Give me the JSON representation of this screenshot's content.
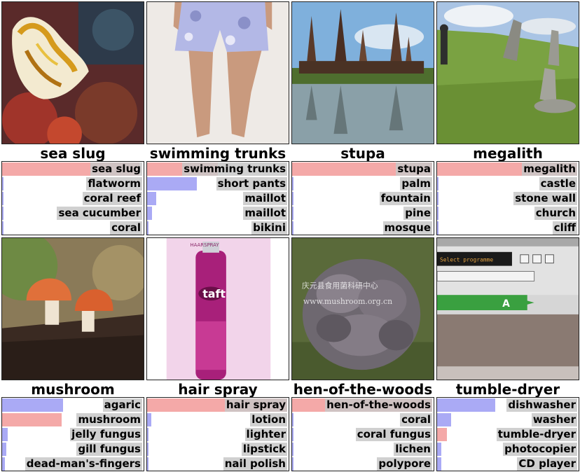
{
  "colors": {
    "truth_bar": "#f4a9a8",
    "prediction_bar": "#aaaaf5",
    "label_bg": "#c8c8c8"
  },
  "cells": [
    {
      "title": "sea slug",
      "photo_icon": "sea-slug-photo",
      "predictions": [
        {
          "label": "sea slug",
          "score": 0.97,
          "truth": true
        },
        {
          "label": "flatworm",
          "score": 0.01,
          "truth": false
        },
        {
          "label": "coral reef",
          "score": 0.01,
          "truth": false
        },
        {
          "label": "sea cucumber",
          "score": 0.01,
          "truth": false
        },
        {
          "label": "coral",
          "score": 0.005,
          "truth": false
        }
      ]
    },
    {
      "title": "swimming trunks",
      "photo_icon": "swimming-trunks-photo",
      "predictions": [
        {
          "label": "swimming trunks",
          "score": 0.5,
          "truth": true
        },
        {
          "label": "short pants",
          "score": 0.35,
          "truth": false
        },
        {
          "label": "maillot",
          "score": 0.065,
          "truth": false
        },
        {
          "label": "maillot",
          "score": 0.035,
          "truth": false
        },
        {
          "label": "bikini",
          "score": 0.01,
          "truth": false
        }
      ]
    },
    {
      "title": "stupa",
      "photo_icon": "stupa-photo",
      "predictions": [
        {
          "label": "stupa",
          "score": 0.99,
          "truth": true
        },
        {
          "label": "palm",
          "score": 0.003,
          "truth": false
        },
        {
          "label": "fountain",
          "score": 0.003,
          "truth": false
        },
        {
          "label": "pine",
          "score": 0.002,
          "truth": false
        },
        {
          "label": "mosque",
          "score": 0.002,
          "truth": false
        }
      ]
    },
    {
      "title": "megalith",
      "photo_icon": "megalith-photo",
      "predictions": [
        {
          "label": "megalith",
          "score": 0.99,
          "truth": true
        },
        {
          "label": "castle",
          "score": 0.003,
          "truth": false
        },
        {
          "label": "stone wall",
          "score": 0.003,
          "truth": false
        },
        {
          "label": "church",
          "score": 0.002,
          "truth": false
        },
        {
          "label": "cliff",
          "score": 0.002,
          "truth": false
        }
      ]
    },
    {
      "title": "mushroom",
      "photo_icon": "mushroom-photo",
      "predictions": [
        {
          "label": "agaric",
          "score": 0.43,
          "truth": false
        },
        {
          "label": "mushroom",
          "score": 0.42,
          "truth": true
        },
        {
          "label": "jelly fungus",
          "score": 0.04,
          "truth": false
        },
        {
          "label": "gill fungus",
          "score": 0.03,
          "truth": false
        },
        {
          "label": "dead-man's-fingers",
          "score": 0.02,
          "truth": false
        }
      ]
    },
    {
      "title": "hair spray",
      "photo_icon": "hair-spray-photo",
      "predictions": [
        {
          "label": "hair spray",
          "score": 0.99,
          "truth": true
        },
        {
          "label": "lotion",
          "score": 0.03,
          "truth": false
        },
        {
          "label": "lighter",
          "score": 0.005,
          "truth": false
        },
        {
          "label": "lipstick",
          "score": 0.003,
          "truth": false
        },
        {
          "label": "nail polish",
          "score": 0.003,
          "truth": false
        }
      ]
    },
    {
      "title": "hen-of-the-woods",
      "photo_icon": "hen-of-the-woods-photo",
      "predictions": [
        {
          "label": "hen-of-the-woods",
          "score": 0.99,
          "truth": true
        },
        {
          "label": "coral",
          "score": 0.003,
          "truth": false
        },
        {
          "label": "coral fungus",
          "score": 0.003,
          "truth": false
        },
        {
          "label": "lichen",
          "score": 0.002,
          "truth": false
        },
        {
          "label": "polypore",
          "score": 0.002,
          "truth": false
        }
      ]
    },
    {
      "title": "tumble-dryer",
      "photo_icon": "tumble-dryer-photo",
      "predictions": [
        {
          "label": "dishwasher",
          "score": 0.41,
          "truth": false
        },
        {
          "label": "washer",
          "score": 0.1,
          "truth": false
        },
        {
          "label": "tumble-dryer",
          "score": 0.07,
          "truth": true
        },
        {
          "label": "photocopier",
          "score": 0.03,
          "truth": false
        },
        {
          "label": "CD player",
          "score": 0.03,
          "truth": false
        }
      ]
    }
  ],
  "photo_overlays": {
    "hen_of_the_woods_watermark_line1": "庆元县食用菌科研中心",
    "hen_of_the_woods_watermark_line2": "www.mushroom.org.cn",
    "hair_spray_brand": "taft",
    "hair_spray_label": "HAARSPRAY",
    "dryer_display_text": "Select programme",
    "dryer_energy_grade": "A"
  }
}
